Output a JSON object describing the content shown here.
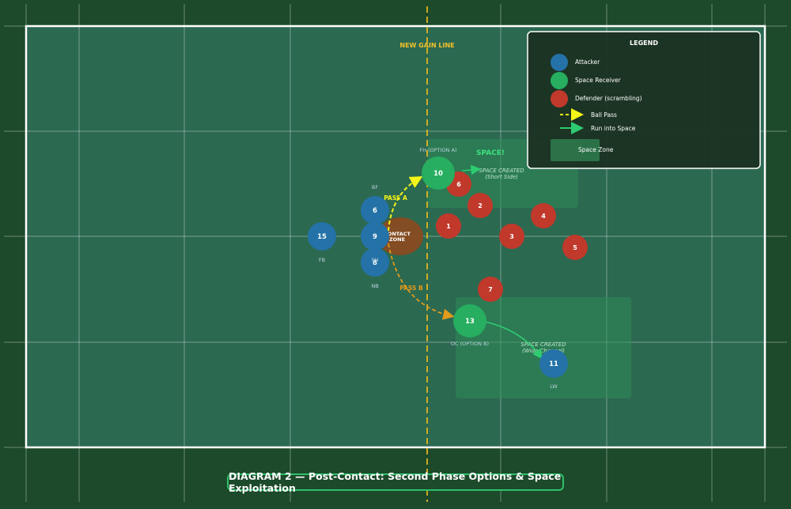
{
  "title": "DIAGRAM 2 — Post-Contact: Second Phase Options & Space Exploitation",
  "labels": {
    "gain_line": "NEW GAIN LINE",
    "contact_zone_line1": "CONTACT",
    "contact_zone_line2": "ZONE",
    "pass_a": "PASS A",
    "pass_b": "PASS B",
    "space": "SPACE!",
    "space_short_line1": "SPACE CREATED",
    "space_short_line2": "(Short Side)",
    "space_wide_line1": "SPACE CREATED",
    "space_wide_line2": "(Wide Channel)"
  },
  "attackers": [
    {
      "number": "15",
      "role": "FB"
    },
    {
      "number": "6",
      "role": "BF"
    },
    {
      "number": "9",
      "role": "SH"
    },
    {
      "number": "8",
      "role": "NB"
    },
    {
      "number": "11",
      "role": "LW"
    }
  ],
  "receivers": [
    {
      "number": "10",
      "role": "FH (OPTION A)"
    },
    {
      "number": "13",
      "role": "OC (OPTION B)"
    }
  ],
  "defenders": [
    "6",
    "2",
    "1",
    "3",
    "4",
    "5",
    "7"
  ],
  "legend": {
    "title": "LEGEND",
    "items": [
      {
        "label": "Attacker",
        "color": "#2472a8"
      },
      {
        "label": "Space Receiver",
        "color": "#27ae60"
      },
      {
        "label": "Defender (scrambling)",
        "color": "#c0392b"
      },
      {
        "label": "Ball Pass",
        "color": "#f5f518"
      },
      {
        "label": "Run into Space",
        "color": "#2ecc71"
      },
      {
        "label": "Space Zone",
        "color": "#2e7d4f"
      }
    ]
  },
  "colors": {
    "pitch": "#2e6b55",
    "surround": "#1c4a2b",
    "attacker": "#2472a8",
    "receiver": "#27ae60",
    "defender": "#c0392b",
    "gain_line": "#e0b420",
    "pass_a": "#f5f518",
    "pass_b": "#e09a1c",
    "run": "#2ecc71",
    "contact": "#8b4a1e"
  }
}
